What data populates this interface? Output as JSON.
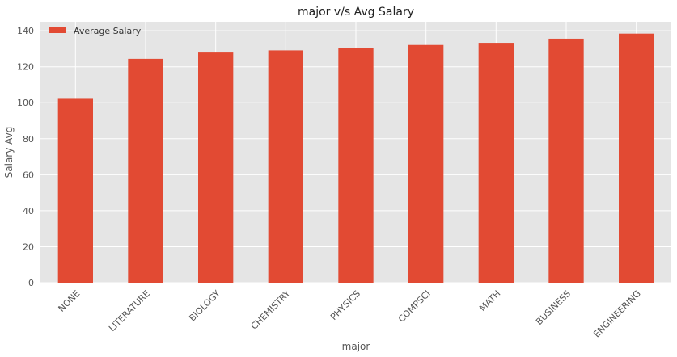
{
  "chart_data": {
    "type": "bar",
    "title": "major v/s Avg Salary",
    "xlabel": "major",
    "ylabel": "Salary Avg",
    "categories": [
      "NONE",
      "LITERATURE",
      "BIOLOGY",
      "CHEMISTRY",
      "PHYSICS",
      "COMPSCI",
      "MATH",
      "BUSINESS",
      "ENGINEERING"
    ],
    "series": [
      {
        "name": "Average Salary",
        "values": [
          102.6,
          124.4,
          127.9,
          129.1,
          130.4,
          132.1,
          133.3,
          135.6,
          138.4
        ]
      }
    ],
    "ylim": [
      0,
      145
    ],
    "yticks": [
      0,
      20,
      40,
      60,
      80,
      100,
      120,
      140
    ],
    "grid": true,
    "legend_position": "top-left",
    "colors": {
      "bar": "#e24a33",
      "background": "#e5e5e5",
      "grid": "#ffffff"
    }
  }
}
